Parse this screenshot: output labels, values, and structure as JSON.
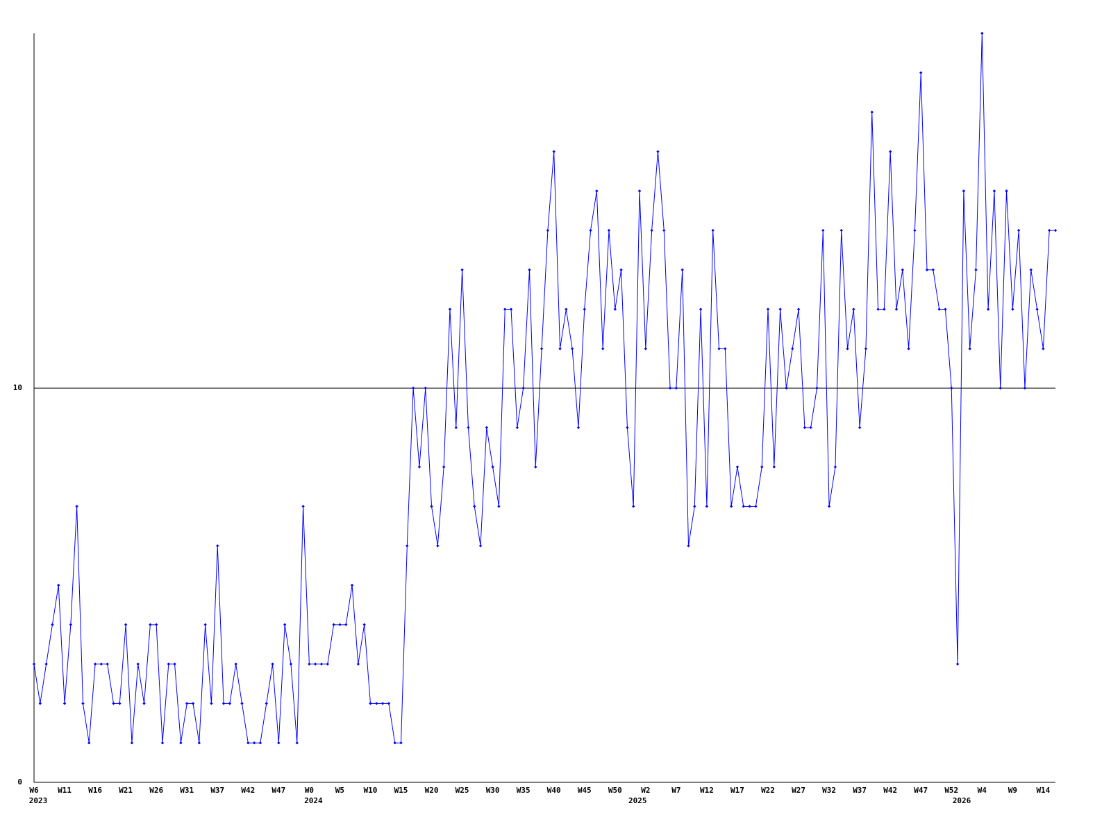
{
  "chart_data": {
    "type": "line",
    "categories": [
      "W6",
      null,
      null,
      null,
      null,
      "W11",
      null,
      null,
      null,
      null,
      "W16",
      null,
      null,
      null,
      null,
      "W21",
      null,
      null,
      null,
      null,
      "W26",
      null,
      null,
      null,
      null,
      "W31",
      null,
      null,
      null,
      null,
      "W37",
      null,
      null,
      null,
      null,
      "W42",
      null,
      null,
      null,
      null,
      "W47",
      null,
      null,
      null,
      null,
      "W0",
      null,
      null,
      null,
      null,
      "W5",
      null,
      null,
      null,
      null,
      "W10",
      null,
      null,
      null,
      null,
      "W15",
      null,
      null,
      null,
      null,
      "W20",
      null,
      null,
      null,
      null,
      "W25",
      null,
      null,
      null,
      null,
      "W30",
      null,
      null,
      null,
      null,
      "W35",
      null,
      null,
      null,
      null,
      "W40",
      null,
      null,
      null,
      null,
      "W45",
      null,
      null,
      null,
      null,
      "W50",
      null,
      null,
      null,
      null,
      "W2",
      null,
      null,
      null,
      null,
      "W7",
      null,
      null,
      null,
      null,
      "W12",
      null,
      null,
      null,
      null,
      "W17",
      null,
      null,
      null,
      null,
      "W22",
      null,
      null,
      null,
      null,
      "W27",
      null,
      null,
      null,
      null,
      "W32",
      null,
      null,
      null,
      null,
      "W37",
      null,
      null,
      null,
      null,
      "W42",
      null,
      null,
      null,
      null,
      "W47",
      null,
      null,
      null,
      null,
      "W52",
      null,
      null,
      null,
      null,
      "W4",
      null,
      null,
      null,
      null,
      "W9",
      null,
      null,
      null,
      null,
      "W14",
      null,
      null
    ],
    "years": [
      "2023",
      null,
      null,
      null,
      null,
      null,
      null,
      null,
      null,
      null,
      null,
      null,
      null,
      null,
      null,
      null,
      null,
      null,
      null,
      null,
      null,
      null,
      null,
      null,
      null,
      null,
      null,
      null,
      null,
      null,
      null,
      null,
      null,
      null,
      null,
      null,
      null,
      null,
      null,
      null,
      null,
      null,
      null,
      null,
      null,
      "2024",
      null,
      null,
      null,
      null,
      null,
      null,
      null,
      null,
      null,
      null,
      null,
      null,
      null,
      null,
      null,
      null,
      null,
      null,
      null,
      null,
      null,
      null,
      null,
      null,
      null,
      null,
      null,
      null,
      null,
      null,
      null,
      null,
      null,
      null,
      null,
      null,
      null,
      null,
      null,
      null,
      null,
      null,
      null,
      null,
      null,
      null,
      null,
      null,
      null,
      null,
      null,
      null,
      "2025",
      null,
      null,
      null,
      null,
      null,
      null,
      null,
      null,
      null,
      null,
      null,
      null,
      null,
      null,
      null,
      null,
      null,
      null,
      null,
      null,
      null,
      null,
      null,
      null,
      null,
      null,
      null,
      null,
      null,
      null,
      null,
      null,
      null,
      null,
      null,
      null,
      null,
      null,
      null,
      null,
      null,
      null,
      null,
      null,
      null,
      null,
      null,
      null,
      null,
      null,
      null,
      null,
      "2026",
      null,
      null,
      null,
      null,
      null,
      null,
      null,
      null,
      null,
      null,
      null,
      null,
      null,
      null,
      null,
      null
    ],
    "series": [
      {
        "color": "#0000ff",
        "values": [
          3,
          2,
          3,
          4,
          5,
          2,
          4,
          7,
          2,
          1,
          3,
          3,
          3,
          2,
          2,
          4,
          1,
          3,
          2,
          4,
          4,
          1,
          3,
          3,
          1,
          2,
          2,
          1,
          4,
          2,
          6,
          2,
          2,
          3,
          2,
          1,
          1,
          1,
          2,
          3,
          1,
          4,
          3,
          1,
          7,
          3,
          3,
          3,
          3,
          4,
          4,
          4,
          5,
          3,
          4,
          2,
          2,
          2,
          2,
          1,
          1,
          6,
          10,
          8,
          10,
          7,
          6,
          8,
          12,
          9,
          13,
          9,
          7,
          6,
          9,
          8,
          7,
          12,
          12,
          9,
          10,
          13,
          8,
          11,
          14,
          16,
          11,
          12,
          11,
          9,
          12,
          14,
          15,
          11,
          14,
          12,
          13,
          9,
          7,
          15,
          11,
          14,
          16,
          14,
          10,
          10,
          13,
          6,
          7,
          12,
          7,
          14,
          11,
          11,
          7,
          8,
          7,
          7,
          7,
          8,
          12,
          8,
          12,
          10,
          11,
          12,
          9,
          9,
          10,
          14,
          7,
          8,
          14,
          11,
          12,
          9,
          11,
          17,
          12,
          12,
          16,
          12,
          13,
          11,
          14,
          18,
          13,
          13,
          12,
          12,
          10,
          3,
          15,
          11,
          13,
          19,
          12,
          15,
          10,
          15,
          12,
          14,
          10,
          13,
          12,
          11,
          14,
          14
        ]
      }
    ],
    "ylim": [
      0,
      19
    ],
    "yticks": [
      0,
      10
    ],
    "grid": true
  }
}
